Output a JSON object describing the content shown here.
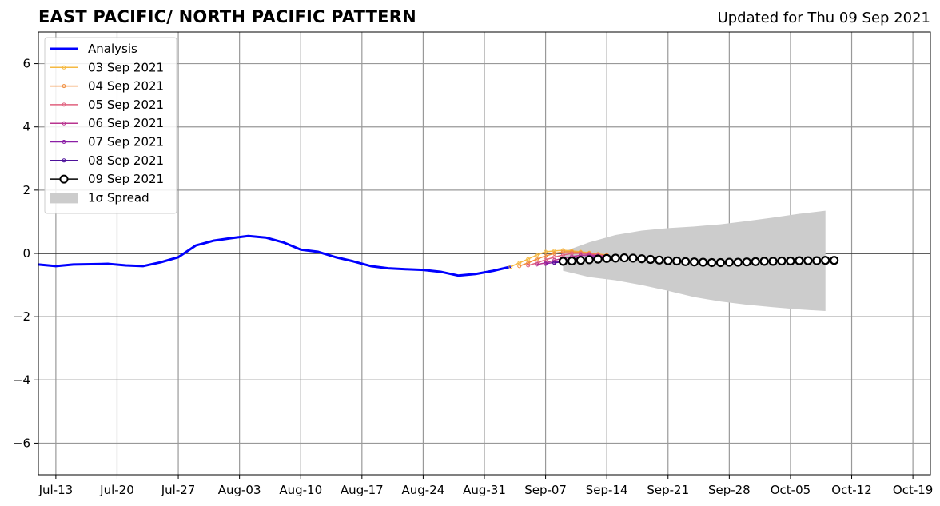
{
  "chart_data": {
    "type": "line",
    "title": "EAST PACIFIC/ NORTH PACIFIC PATTERN",
    "subtitle": "Updated for Thu 09 Sep 2021",
    "x_ticks": [
      "Jul-13",
      "Jul-20",
      "Jul-27",
      "Aug-03",
      "Aug-10",
      "Aug-17",
      "Aug-24",
      "Aug-31",
      "Sep-07",
      "Sep-14",
      "Sep-21",
      "Sep-28",
      "Oct-05",
      "Oct-12",
      "Oct-19"
    ],
    "xlim": [
      "2021-07-11",
      "2021-10-21"
    ],
    "ylim": [
      -7,
      7
    ],
    "y_ticks": [
      -6,
      -4,
      -2,
      0,
      2,
      4,
      6
    ],
    "y_tick_labels": [
      "−6",
      "−4",
      "−2",
      "0",
      "2",
      "4",
      "6"
    ],
    "grid": true,
    "legend_position": "top-left",
    "legend": [
      "Analysis",
      "03 Sep 2021",
      "04 Sep 2021",
      "05 Sep 2021",
      "06 Sep 2021",
      "07 Sep 2021",
      "08 Sep 2021",
      "09 Sep 2021",
      "1σ Spread"
    ],
    "analysis": {
      "name": "Analysis",
      "color": "#0000ff",
      "x": [
        "2021-07-11",
        "2021-07-13",
        "2021-07-15",
        "2021-07-17",
        "2021-07-19",
        "2021-07-21",
        "2021-07-23",
        "2021-07-25",
        "2021-07-27",
        "2021-07-29",
        "2021-07-31",
        "2021-08-02",
        "2021-08-04",
        "2021-08-06",
        "2021-08-08",
        "2021-08-10",
        "2021-08-12",
        "2021-08-14",
        "2021-08-16",
        "2021-08-18",
        "2021-08-20",
        "2021-08-22",
        "2021-08-24",
        "2021-08-26",
        "2021-08-28",
        "2021-08-30",
        "2021-09-01",
        "2021-09-03"
      ],
      "y": [
        -0.35,
        -0.4,
        -0.35,
        -0.34,
        -0.33,
        -0.38,
        -0.4,
        -0.28,
        -0.12,
        0.25,
        0.4,
        0.48,
        0.55,
        0.5,
        0.35,
        0.12,
        0.05,
        -0.12,
        -0.25,
        -0.4,
        -0.47,
        -0.5,
        -0.52,
        -0.58,
        -0.7,
        -0.65,
        -0.55,
        -0.42
      ]
    },
    "forecasts": [
      {
        "name": "03 Sep 2021",
        "color": "#f5b942",
        "start": "2021-09-03",
        "values": [
          -0.42,
          -0.3,
          -0.18,
          -0.05,
          0.05,
          0.08,
          0.1,
          0.08,
          0.05,
          0.02,
          -0.02,
          -0.05
        ]
      },
      {
        "name": "04 Sep 2021",
        "color": "#f08c3a",
        "start": "2021-09-04",
        "values": [
          -0.4,
          -0.3,
          -0.18,
          -0.08,
          0.0,
          0.05,
          0.05,
          0.03,
          0.0,
          -0.03,
          -0.06
        ]
      },
      {
        "name": "05 Sep 2021",
        "color": "#e0607e",
        "start": "2021-09-05",
        "values": [
          -0.38,
          -0.3,
          -0.2,
          -0.12,
          -0.05,
          0.0,
          0.0,
          -0.02,
          -0.05,
          -0.08
        ]
      },
      {
        "name": "06 Sep 2021",
        "color": "#b8348f",
        "start": "2021-09-06",
        "values": [
          -0.35,
          -0.3,
          -0.22,
          -0.15,
          -0.1,
          -0.06,
          -0.05,
          -0.08,
          -0.1
        ]
      },
      {
        "name": "07 Sep 2021",
        "color": "#8b1fa6",
        "start": "2021-09-07",
        "values": [
          -0.33,
          -0.28,
          -0.22,
          -0.18,
          -0.12,
          -0.1,
          -0.1,
          -0.12
        ]
      },
      {
        "name": "08 Sep 2021",
        "color": "#4d119a",
        "start": "2021-09-08",
        "values": [
          -0.3,
          -0.26,
          -0.22,
          -0.2,
          -0.16,
          -0.14,
          -0.14
        ]
      }
    ],
    "current_forecast": {
      "name": "09 Sep 2021",
      "color": "#000000",
      "start": "2021-09-09",
      "values": [
        -0.25,
        -0.24,
        -0.22,
        -0.2,
        -0.18,
        -0.16,
        -0.15,
        -0.14,
        -0.15,
        -0.17,
        -0.19,
        -0.21,
        -0.23,
        -0.24,
        -0.26,
        -0.27,
        -0.28,
        -0.29,
        -0.29,
        -0.28,
        -0.28,
        -0.27,
        -0.26,
        -0.25,
        -0.25,
        -0.24,
        -0.24,
        -0.23,
        -0.23,
        -0.23,
        -0.22,
        -0.22
      ]
    },
    "spread": {
      "name": "1σ Spread",
      "color": "#cccccc",
      "x": [
        "2021-09-09",
        "2021-09-12",
        "2021-09-15",
        "2021-09-18",
        "2021-09-21",
        "2021-09-24",
        "2021-09-27",
        "2021-09-30",
        "2021-10-03",
        "2021-10-06",
        "2021-10-09"
      ],
      "upper": [
        0.05,
        0.35,
        0.58,
        0.72,
        0.8,
        0.85,
        0.92,
        1.02,
        1.13,
        1.25,
        1.35
      ],
      "lower": [
        -0.55,
        -0.75,
        -0.85,
        -1.0,
        -1.18,
        -1.38,
        -1.52,
        -1.62,
        -1.7,
        -1.77,
        -1.82
      ]
    }
  }
}
